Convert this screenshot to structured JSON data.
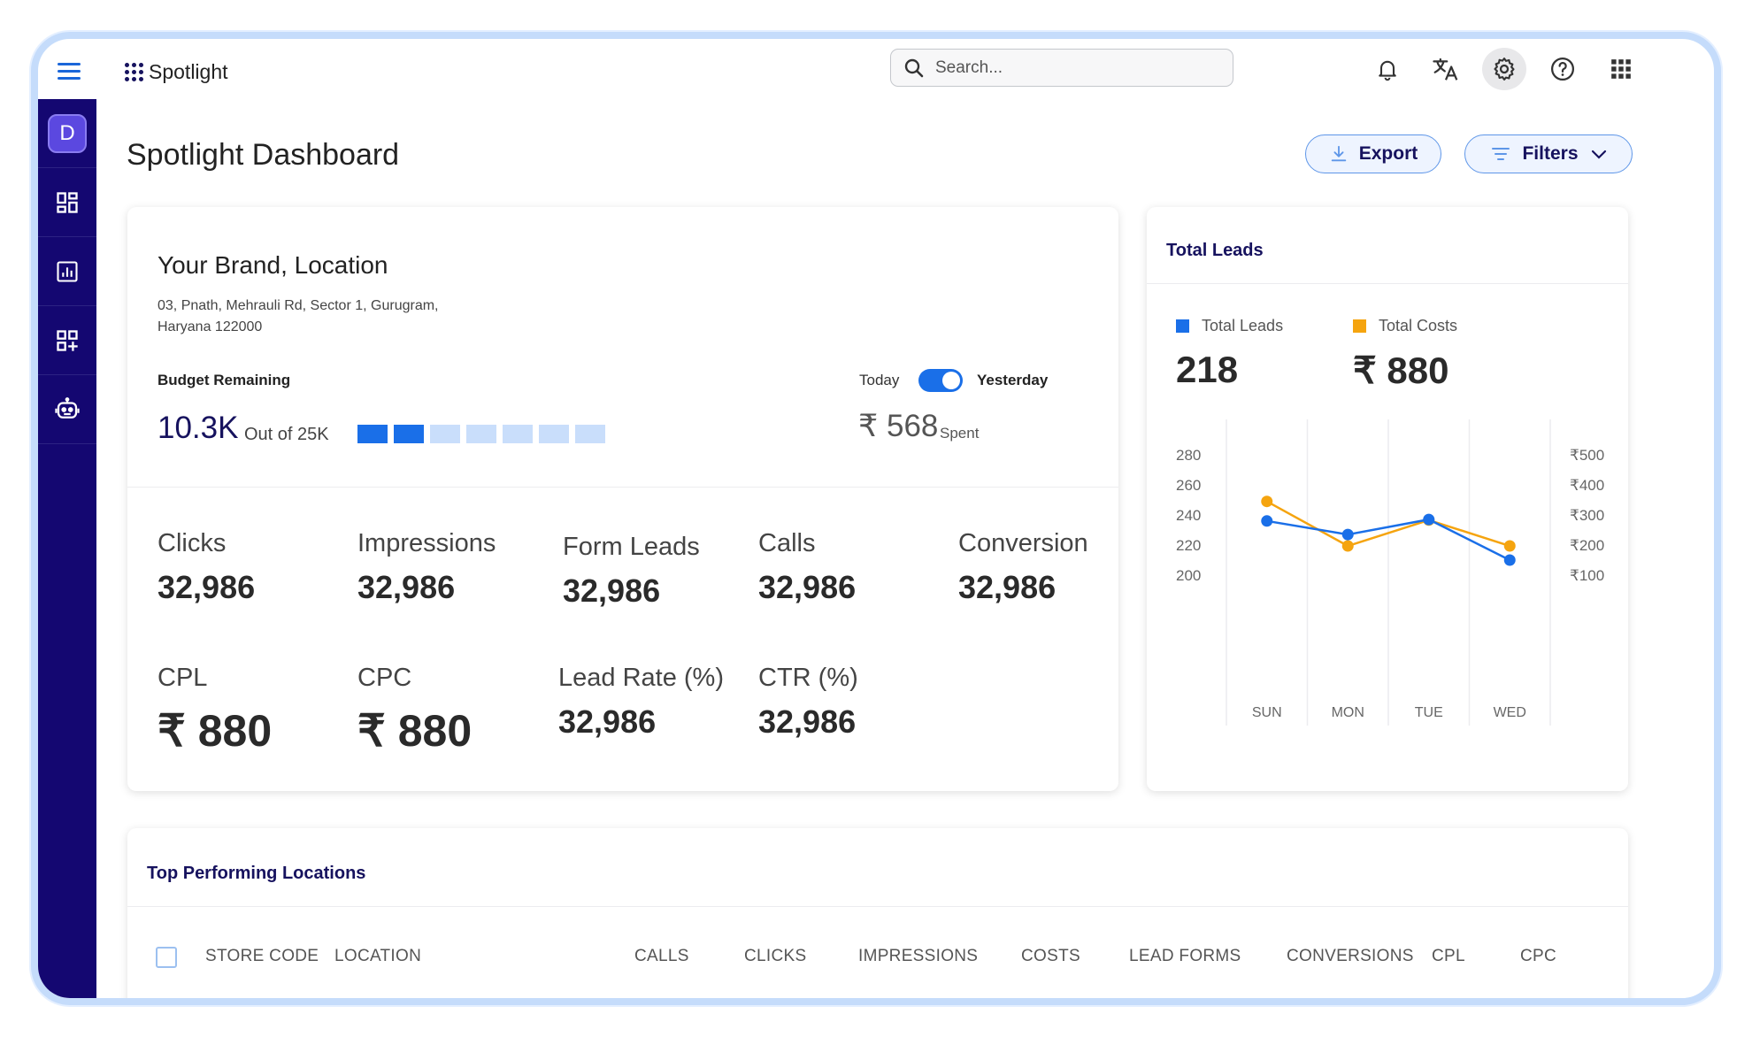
{
  "app": {
    "logo_text": "Spotlight"
  },
  "search": {
    "placeholder": "Search..."
  },
  "toolbar_icons": [
    "bell-icon",
    "translate-icon",
    "settings-icon",
    "help-icon",
    "apps-grid-icon"
  ],
  "sidebar": {
    "avatar_letter": "D",
    "items": [
      "dashboard-icon",
      "report-icon",
      "add-widget-icon",
      "bot-icon"
    ]
  },
  "page": {
    "title": "Spotlight Dashboard",
    "export_label": "Export",
    "filters_label": "Filters"
  },
  "brand": {
    "name": "Your Brand, Location",
    "address_line1": "03, Pnath, Mehrauli Rd, Sector 1, Gurugram,",
    "address_line2": "Haryana 122000",
    "budget_label": "Budget Remaining",
    "budget_value": "10.3K",
    "budget_out_of": "Out of 25K",
    "budget_segments_filled": 2,
    "budget_segments_total": 7,
    "toggle_left": "Today",
    "toggle_right": "Yesterday",
    "toggle_on": true,
    "spent_value": "₹ 568",
    "spent_label": "Spent"
  },
  "metrics": [
    {
      "label": "Clicks",
      "value": "32,986"
    },
    {
      "label": "Impressions",
      "value": "32,986"
    },
    {
      "label": "Form Leads",
      "value": "32,986"
    },
    {
      "label": "Calls",
      "value": "32,986"
    },
    {
      "label": "Conversion",
      "value": "32,986"
    },
    {
      "label": "CPL",
      "value": "₹ 880"
    },
    {
      "label": "CPC",
      "value": "₹ 880"
    },
    {
      "label": "Lead Rate (%)",
      "value": "32,986"
    },
    {
      "label": "CTR (%)",
      "value": "32,986"
    }
  ],
  "leads_card": {
    "title": "Total Leads",
    "legend_leads": "Total Leads",
    "legend_costs": "Total Costs",
    "leads_value": "218",
    "costs_value": "₹ 880"
  },
  "chart_data": {
    "type": "line",
    "categories": [
      "SUN",
      "MON",
      "TUE",
      "WED"
    ],
    "series": [
      {
        "name": "Total Leads",
        "color": "#1a6fe8",
        "axis": "left",
        "values": [
          236,
          227,
          237,
          210
        ]
      },
      {
        "name": "Total Costs",
        "color": "#f5a40f",
        "axis": "right",
        "values": [
          345,
          197,
          283,
          197
        ]
      }
    ],
    "y_left_ticks": [
      "280",
      "260",
      "240",
      "220",
      "200"
    ],
    "y_left_range": [
      200,
      280
    ],
    "y_right_ticks": [
      "₹500",
      "₹400",
      "₹300",
      "₹200",
      "₹100"
    ],
    "y_right_range": [
      100,
      500
    ],
    "grid": "vertical"
  },
  "table": {
    "title": "Top Performing Locations",
    "columns": [
      "STORE CODE",
      "LOCATION",
      "CALLS",
      "CLICKS",
      "IMPRESSIONS",
      "COSTS",
      "LEAD FORMS",
      "CONVERSIONS",
      "CPL",
      "CPC"
    ]
  },
  "colors": {
    "sidebar": "#140771",
    "accent": "#1a6fe8",
    "cost": "#f5a40f",
    "title": "#16125e"
  }
}
